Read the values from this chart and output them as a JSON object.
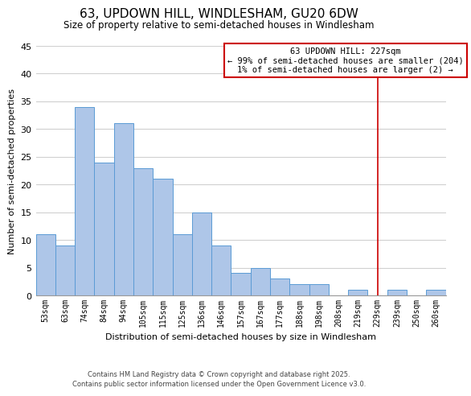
{
  "title": "63, UPDOWN HILL, WINDLESHAM, GU20 6DW",
  "subtitle": "Size of property relative to semi-detached houses in Windlesham",
  "xlabel": "Distribution of semi-detached houses by size in Windlesham",
  "ylabel": "Number of semi-detached properties",
  "bar_labels": [
    "53sqm",
    "63sqm",
    "74sqm",
    "84sqm",
    "94sqm",
    "105sqm",
    "115sqm",
    "125sqm",
    "136sqm",
    "146sqm",
    "157sqm",
    "167sqm",
    "177sqm",
    "188sqm",
    "198sqm",
    "208sqm",
    "219sqm",
    "229sqm",
    "239sqm",
    "250sqm",
    "260sqm"
  ],
  "bar_heights": [
    11,
    9,
    34,
    24,
    31,
    23,
    21,
    11,
    15,
    9,
    4,
    5,
    3,
    2,
    2,
    0,
    1,
    0,
    1,
    0,
    1
  ],
  "bar_color": "#aec6e8",
  "bar_edge_color": "#5b9bd5",
  "ylim": [
    0,
    45
  ],
  "yticks": [
    0,
    5,
    10,
    15,
    20,
    25,
    30,
    35,
    40,
    45
  ],
  "vline_color": "#cc0000",
  "vline_x_idx": 17,
  "annotation_title": "63 UPDOWN HILL: 227sqm",
  "annotation_line1": "← 99% of semi-detached houses are smaller (204)",
  "annotation_line2": "1% of semi-detached houses are larger (2) →",
  "annotation_box_color": "#ffffff",
  "annotation_box_edge": "#cc0000",
  "footer_line1": "Contains HM Land Registry data © Crown copyright and database right 2025.",
  "footer_line2": "Contains public sector information licensed under the Open Government Licence v3.0.",
  "background_color": "#ffffff",
  "grid_color": "#d0d0d0"
}
